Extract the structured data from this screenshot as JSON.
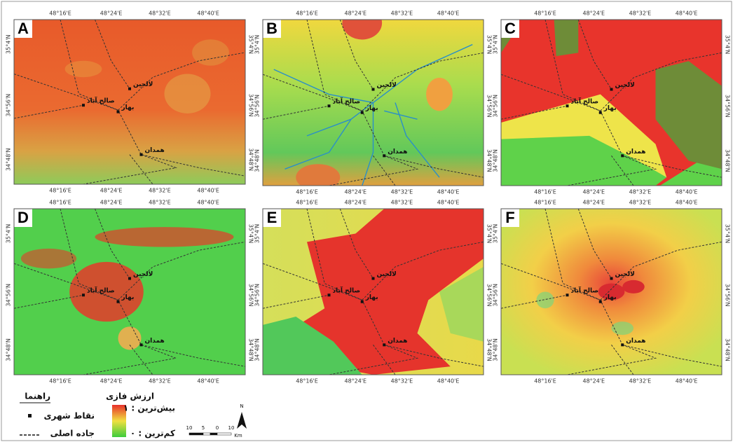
{
  "panels": [
    "A",
    "B",
    "C",
    "D",
    "E",
    "F"
  ],
  "coordinates": {
    "longitudes": [
      "48°16'E",
      "48°24'E",
      "48°32'E",
      "48°40'E"
    ],
    "latitudes": [
      "35°4'N",
      "34°56'N",
      "34°48'N"
    ]
  },
  "cities": [
    "لالجین",
    "صالح آباد",
    "بهار",
    "همدان"
  ],
  "legend": {
    "title": "راهنما",
    "city_points": "نقاط شهری",
    "main_road": "جاده اصلی",
    "fuzzy_title": "ارزش فازی",
    "max_label": "۱ : بیش‌ترین",
    "min_label": "۰ : کم‌ترین",
    "north": "N",
    "scale": {
      "ticks": [
        "10",
        "5",
        "0",
        "10"
      ],
      "unit": "Km"
    }
  }
}
